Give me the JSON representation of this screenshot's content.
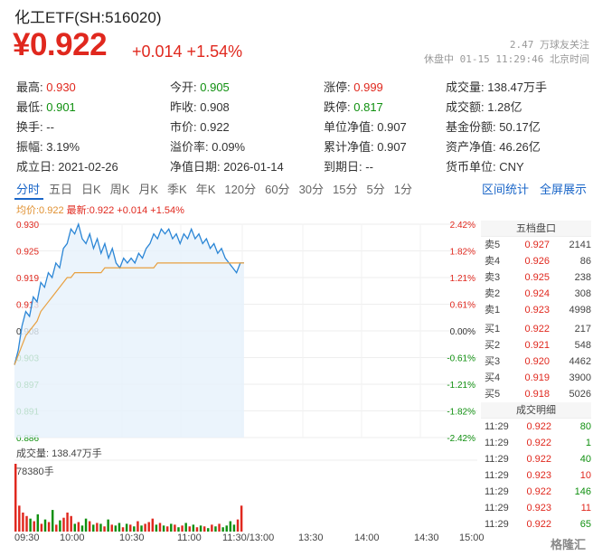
{
  "header": {
    "title": "化工ETF(SH:516020)",
    "price": "¥0.922",
    "change": "+0.014 +1.54%",
    "meta_line1": "2.47 万球友关注",
    "meta_line2": "休盘中 01-15 11:29:46 北京时间"
  },
  "stats": {
    "high_label": "最高:",
    "high": "0.930",
    "open_label": "今开:",
    "open": "0.905",
    "limit_up_label": "涨停:",
    "limit_up": "0.999",
    "volume_label": "成交量:",
    "volume": "138.47万手",
    "low_label": "最低:",
    "low": "0.901",
    "prev_close_label": "昨收:",
    "prev_close": "0.908",
    "limit_down_label": "跌停:",
    "limit_down": "0.817",
    "amount_label": "成交额:",
    "amount": "1.28亿",
    "turnover_label": "换手:",
    "turnover": "--",
    "market_price_label": "市价:",
    "market_price": "0.922",
    "nav_label": "单位净值:",
    "nav": "0.907",
    "fund_share_label": "基金份额:",
    "fund_share": "50.17亿",
    "amplitude_label": "振幅:",
    "amplitude": "3.19%",
    "premium_label": "溢价率:",
    "premium": "0.09%",
    "acc_nav_label": "累计净值:",
    "acc_nav": "0.907",
    "assets_label": "资产净值:",
    "assets": "46.26亿",
    "inception_label": "成立日:",
    "inception": "2021-02-26",
    "nav_date_label": "净值日期:",
    "nav_date": "2026-01-14",
    "maturity_label": "到期日:",
    "maturity": "--",
    "currency_label": "货币单位:",
    "currency": "CNY"
  },
  "tabs": [
    "分时",
    "五日",
    "日K",
    "周K",
    "月K",
    "季K",
    "年K",
    "120分",
    "60分",
    "30分",
    "15分",
    "5分",
    "1分"
  ],
  "tab_links": {
    "range_stats": "区间统计",
    "fullscreen": "全屏展示"
  },
  "legend": {
    "avg": "均价:0.922",
    "last": "最新:0.922 +0.014 +1.54%"
  },
  "orderbook": {
    "title": "五档盘口",
    "asks": [
      {
        "label": "卖5",
        "price": "0.927",
        "vol": "2141"
      },
      {
        "label": "卖4",
        "price": "0.926",
        "vol": "86"
      },
      {
        "label": "卖3",
        "price": "0.925",
        "vol": "238"
      },
      {
        "label": "卖2",
        "price": "0.924",
        "vol": "308"
      },
      {
        "label": "卖1",
        "price": "0.923",
        "vol": "4998"
      }
    ],
    "bids": [
      {
        "label": "买1",
        "price": "0.922",
        "vol": "217"
      },
      {
        "label": "买2",
        "price": "0.921",
        "vol": "548"
      },
      {
        "label": "买3",
        "price": "0.920",
        "vol": "4462"
      },
      {
        "label": "买4",
        "price": "0.919",
        "vol": "3900"
      },
      {
        "label": "买5",
        "price": "0.918",
        "vol": "5026"
      }
    ],
    "trades_title": "成交明细",
    "trades": [
      {
        "time": "11:29",
        "price": "0.922",
        "vol": "80"
      },
      {
        "time": "11:29",
        "price": "0.922",
        "vol": "1"
      },
      {
        "time": "11:29",
        "price": "0.922",
        "vol": "40"
      },
      {
        "time": "11:29",
        "price": "0.923",
        "vol": "10"
      },
      {
        "time": "11:29",
        "price": "0.922",
        "vol": "146"
      },
      {
        "time": "11:29",
        "price": "0.923",
        "vol": "11"
      },
      {
        "time": "11:29",
        "price": "0.922",
        "vol": "65"
      }
    ]
  },
  "volume": {
    "label": "成交量: 138.47万手",
    "max": "78380手"
  },
  "time_axis": [
    "09:30",
    "10:00",
    "10:30",
    "11:00",
    "11:30/13:00",
    "13:30",
    "14:00",
    "14:30",
    "15:00"
  ],
  "watermark": "格隆汇",
  "colors": {
    "up": "#e0281e",
    "down": "#109010",
    "price_line": "#2b86d6",
    "avg_line": "#e8a040",
    "accent": "#1a66c8"
  },
  "chart_data": {
    "type": "line",
    "y_ticks_left": [
      "0.930",
      "0.925",
      "0.919",
      "0.913",
      "0.908",
      "0.903",
      "0.897",
      "0.891",
      "0.886"
    ],
    "y_ticks_right": [
      "2.42%",
      "1.82%",
      "1.21%",
      "0.61%",
      "0.00%",
      "-0.61%",
      "-1.21%",
      "-1.82%",
      "-2.42%"
    ],
    "ylim": [
      0.886,
      0.93
    ],
    "prev_close": 0.908,
    "x_minutes_total": 240,
    "price": [
      0.901,
      0.904,
      0.909,
      0.912,
      0.911,
      0.915,
      0.914,
      0.918,
      0.917,
      0.92,
      0.919,
      0.922,
      0.921,
      0.925,
      0.926,
      0.929,
      0.928,
      0.93,
      0.927,
      0.926,
      0.928,
      0.925,
      0.927,
      0.924,
      0.926,
      0.923,
      0.925,
      0.922,
      0.921,
      0.923,
      0.922,
      0.923,
      0.922,
      0.924,
      0.923,
      0.925,
      0.926,
      0.928,
      0.927,
      0.929,
      0.928,
      0.929,
      0.927,
      0.928,
      0.926,
      0.928,
      0.927,
      0.929,
      0.927,
      0.928,
      0.926,
      0.927,
      0.925,
      0.926,
      0.924,
      0.925,
      0.923,
      0.922,
      0.921,
      0.92,
      0.922,
      0.922
    ],
    "avg": [
      0.901,
      0.903,
      0.905,
      0.907,
      0.908,
      0.909,
      0.91,
      0.912,
      0.913,
      0.914,
      0.915,
      0.916,
      0.917,
      0.918,
      0.919,
      0.919,
      0.92,
      0.92,
      0.92,
      0.92,
      0.92,
      0.92,
      0.92,
      0.92,
      0.921,
      0.921,
      0.921,
      0.921,
      0.921,
      0.921,
      0.921,
      0.921,
      0.921,
      0.921,
      0.921,
      0.921,
      0.921,
      0.921,
      0.922,
      0.922,
      0.922,
      0.922,
      0.922,
      0.922,
      0.922,
      0.922,
      0.922,
      0.922,
      0.922,
      0.922,
      0.922,
      0.922,
      0.922,
      0.922,
      0.922,
      0.922,
      0.922,
      0.922,
      0.922,
      0.922,
      0.922,
      0.922
    ],
    "volume_max": 78380,
    "volumes": [
      78380,
      30000,
      22000,
      18000,
      15000,
      12000,
      20000,
      9000,
      14000,
      11000,
      25000,
      8000,
      13000,
      16000,
      22000,
      18000,
      9000,
      11000,
      7000,
      15000,
      12000,
      8000,
      10000,
      9000,
      6000,
      14000,
      8000,
      7000,
      10000,
      5000,
      9000,
      8000,
      6000,
      12000,
      7000,
      9000,
      11000,
      15000,
      8000,
      10000,
      7000,
      6000,
      9000,
      8000,
      5000,
      7000,
      10000,
      6000,
      8000,
      5000,
      7000,
      6000,
      4000,
      8000,
      6000,
      9000,
      5000,
      7000,
      12000,
      8000,
      14000,
      30000
    ]
  }
}
